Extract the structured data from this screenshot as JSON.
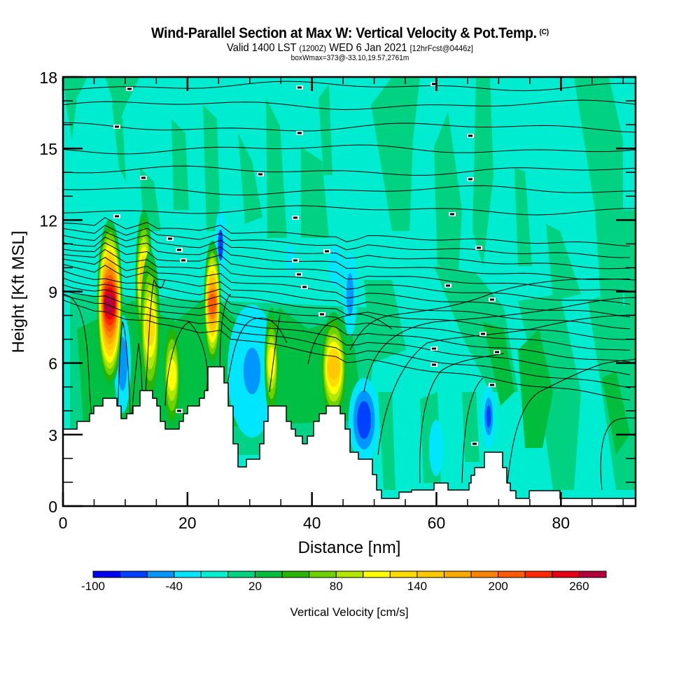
{
  "header": {
    "title": "Wind-Parallel Section at Max W: Vertical Velocity & Pot.Temp.",
    "copyright": "(C)",
    "valid_prefix": "Valid 1400 LST",
    "valid_utc": "(1200Z)",
    "valid_date": "WED 6 Jan 2021",
    "forecast": "[12hrFcst@0446z]",
    "box_info": "boxWmax=373@-33.10,19.57,2761m"
  },
  "chart_data": {
    "type": "heatmap",
    "title": "Wind-Parallel Section at Max W: Vertical Velocity & Pot.Temp.",
    "xlabel": "Distance [nm]",
    "ylabel": "Height [Kft MSL]",
    "xlim": [
      0,
      92
    ],
    "ylim": [
      0,
      18
    ],
    "x_ticks": [
      0,
      20,
      40,
      60,
      80
    ],
    "x_tick_labels": [
      "0",
      "20",
      "40",
      "60",
      "80"
    ],
    "x_minor_step": 5,
    "y_ticks": [
      0,
      3,
      6,
      9,
      12,
      15,
      18
    ],
    "y_tick_labels": [
      "0",
      "3",
      "6",
      "9",
      "12",
      "15",
      "18"
    ],
    "y_minor_step": 1,
    "grid": false,
    "colorbar": {
      "title": "Vertical Velocity [cm/s]",
      "min": -100,
      "max": 280,
      "step": 20,
      "tick_values": [
        -100,
        -40,
        20,
        80,
        140,
        200,
        260
      ],
      "tick_labels": [
        "-100",
        "-40",
        "20",
        "80",
        "140",
        "200",
        "260"
      ],
      "placement": "bottom",
      "colors": [
        "#0000f0",
        "#0040ff",
        "#0096ff",
        "#00e6ff",
        "#00f0d0",
        "#00d282",
        "#00be3c",
        "#28b400",
        "#6ed200",
        "#b4e600",
        "#ffff00",
        "#ffdc00",
        "#ffc800",
        "#ffaa00",
        "#ff8200",
        "#ff5a00",
        "#ff2800",
        "#e60014",
        "#b4003c"
      ]
    },
    "updrafts": [
      {
        "distance_nm": 7.5,
        "height_kft": 8.5,
        "max_cms": 260
      },
      {
        "distance_nm": 13,
        "height_kft": 9.5,
        "max_cms": 140
      },
      {
        "distance_nm": 14,
        "height_kft": 7.5,
        "max_cms": 120
      },
      {
        "distance_nm": 17.5,
        "height_kft": 5.5,
        "max_cms": 100
      },
      {
        "distance_nm": 24,
        "height_kft": 8.5,
        "max_cms": 200
      },
      {
        "distance_nm": 33.5,
        "height_kft": 6.0,
        "max_cms": 100
      },
      {
        "distance_nm": 43.5,
        "height_kft": 5.8,
        "max_cms": 140
      }
    ],
    "downdrafts": [
      {
        "distance_nm": 9.5,
        "height_kft": 6.0,
        "min_cms": -60
      },
      {
        "distance_nm": 28.5,
        "height_kft": 5.0,
        "min_cms": -60
      },
      {
        "distance_nm": 48,
        "height_kft": 3.0,
        "min_cms": -100
      },
      {
        "distance_nm": 68,
        "height_kft": 3.3,
        "min_cms": -80
      }
    ],
    "contour_field": "Potential Temperature"
  }
}
